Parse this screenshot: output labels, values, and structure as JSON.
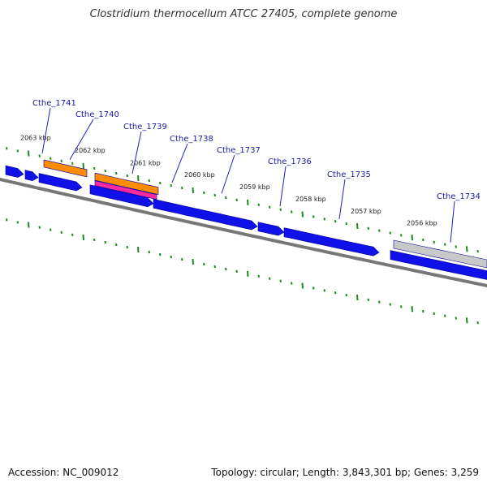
{
  "title": "Clostridium thermocellum ATCC 27405, complete genome",
  "footer": {
    "accession": "Accession: NC_009012",
    "summary": "Topology: circular; Length: 3,843,301 bp; Genes: 3,259"
  },
  "colors": {
    "forward_gene": "#1010e8",
    "orf_orange": "#ff8c00",
    "orf_magenta": "#ff2aa0",
    "unknown_grey": "#c8c8c8",
    "backbone": "#777777",
    "tick": "#1a8a1a",
    "label_line": "#2020c0"
  },
  "scale": {
    "labels": [
      "2063 kbp",
      "2062 kbp",
      "2061 kbp",
      "2060 kbp",
      "2059 kbp",
      "2058 kbp",
      "2057 kbp",
      "2056 kbp"
    ]
  },
  "genes": [
    {
      "name": "Cthe_1741"
    },
    {
      "name": "Cthe_1740"
    },
    {
      "name": "Cthe_1739"
    },
    {
      "name": "Cthe_1738"
    },
    {
      "name": "Cthe_1737"
    },
    {
      "name": "Cthe_1736"
    },
    {
      "name": "Cthe_1735"
    },
    {
      "name": "Cthe_1734"
    }
  ]
}
